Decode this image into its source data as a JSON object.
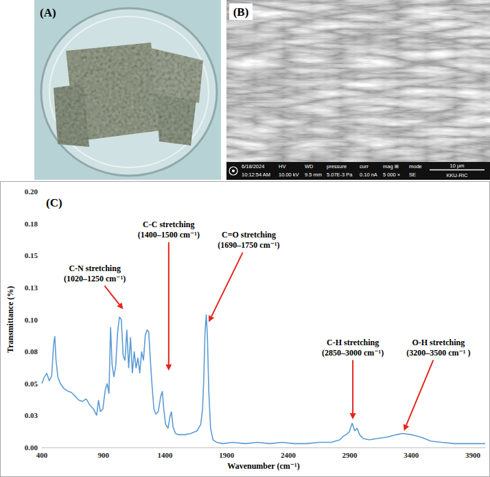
{
  "panels": {
    "A": {
      "label": "(A)"
    },
    "B": {
      "label": "(B)",
      "sem_info": [
        {
          "head": "6/18/2024",
          "value": "10:12:54 AM"
        },
        {
          "head": "HV",
          "value": "10.00 kV"
        },
        {
          "head": "WD",
          "value": "9.5 mm"
        },
        {
          "head": "pressure",
          "value": "5.07E-3 Pa"
        },
        {
          "head": "curr",
          "value": "0.10 nA"
        },
        {
          "head": "mag ⊞",
          "value": "5 000 ×"
        },
        {
          "head": "mode",
          "value": "SE"
        }
      ],
      "scale_bar": "10 µm",
      "lab": "KKU-RIC"
    }
  },
  "chart_data": {
    "type": "line",
    "panel_label": "(C)",
    "x_label": "Wavenumber (cm⁻¹)",
    "y_label": "Transmittance (%)",
    "color": "#5b9bd5",
    "grid": false,
    "xlim": [
      400,
      4000
    ],
    "xticks": [
      400,
      900,
      1400,
      1900,
      2400,
      2900,
      3400,
      3900
    ],
    "ylim": [
      0,
      0.2
    ],
    "yticks": [
      {
        "value": 0,
        "label": "0.00"
      },
      {
        "value": 0.025,
        "label": "0.03"
      },
      0.05,
      {
        "value": 0.075,
        "label": "0.08"
      },
      {
        "value": 0.1,
        "label": "0.10"
      },
      {
        "value": 0.125,
        "label": "0.13"
      },
      0.15,
      {
        "value": 0.175,
        "label": "0.18"
      },
      {
        "value": 0.2,
        "label": "0.20"
      }
    ],
    "x": [
      400,
      420,
      440,
      460,
      480,
      495,
      505,
      515,
      530,
      550,
      580,
      610,
      640,
      670,
      700,
      730,
      760,
      790,
      820,
      845,
      860,
      875,
      895,
      915,
      930,
      945,
      958,
      970,
      985,
      1000,
      1015,
      1030,
      1045,
      1060,
      1075,
      1090,
      1105,
      1120,
      1135,
      1150,
      1165,
      1180,
      1195,
      1210,
      1225,
      1240,
      1255,
      1268,
      1280,
      1295,
      1310,
      1325,
      1345,
      1365,
      1378,
      1390,
      1405,
      1425,
      1440,
      1452,
      1465,
      1485,
      1510,
      1560,
      1610,
      1660,
      1690,
      1705,
      1715,
      1725,
      1735,
      1745,
      1755,
      1770,
      1790,
      1820,
      1870,
      1950,
      2050,
      2150,
      2250,
      2350,
      2450,
      2550,
      2650,
      2750,
      2820,
      2850,
      2870,
      2895,
      2920,
      2940,
      2960,
      2980,
      3010,
      3060,
      3120,
      3200,
      3280,
      3330,
      3400,
      3480,
      3560,
      3650,
      3750,
      3850,
      3950,
      4000
    ],
    "values": [
      0.05,
      0.055,
      0.058,
      0.052,
      0.056,
      0.08,
      0.087,
      0.068,
      0.055,
      0.05,
      0.046,
      0.044,
      0.043,
      0.04,
      0.037,
      0.036,
      0.038,
      0.033,
      0.03,
      0.025,
      0.037,
      0.028,
      0.03,
      0.045,
      0.05,
      0.042,
      0.094,
      0.065,
      0.055,
      0.064,
      0.09,
      0.102,
      0.1,
      0.072,
      0.068,
      0.092,
      0.062,
      0.086,
      0.058,
      0.075,
      0.062,
      0.07,
      0.058,
      0.075,
      0.068,
      0.088,
      0.092,
      0.09,
      0.07,
      0.048,
      0.03,
      0.026,
      0.028,
      0.04,
      0.044,
      0.03,
      0.018,
      0.015,
      0.024,
      0.028,
      0.016,
      0.011,
      0.01,
      0.01,
      0.011,
      0.013,
      0.018,
      0.03,
      0.055,
      0.09,
      0.104,
      0.085,
      0.045,
      0.015,
      0.006,
      0.004,
      0.003,
      0.004,
      0.003,
      0.004,
      0.003,
      0.004,
      0.003,
      0.003,
      0.004,
      0.004,
      0.006,
      0.009,
      0.01,
      0.012,
      0.019,
      0.013,
      0.015,
      0.01,
      0.007,
      0.006,
      0.007,
      0.008,
      0.01,
      0.011,
      0.01,
      0.008,
      0.005,
      0.004,
      0.003,
      0.003,
      0.003,
      0.003
    ],
    "annotations": [
      {
        "lines": [
          "C-N stretching",
          "(1020–1250 cm⁻¹)"
        ],
        "x": 1060,
        "y": 0.108,
        "text_x": 830,
        "text_y": 0.136
      },
      {
        "lines": [
          "C-C stretching",
          "(1400–1500 cm⁻¹)"
        ],
        "x": 1430,
        "y": 0.06,
        "text_x": 1430,
        "text_y": 0.17
      },
      {
        "lines": [
          "C=O stretching",
          "(1690–1750 cm⁻¹)"
        ],
        "x": 1755,
        "y": 0.098,
        "text_x": 2080,
        "text_y": 0.162
      },
      {
        "lines": [
          "C-H stretching",
          "(2850–3000 cm⁻¹)"
        ],
        "x": 2925,
        "y": 0.022,
        "text_x": 2925,
        "text_y": 0.078
      },
      {
        "lines": [
          "O-H stretching",
          "(3200–3500 cm⁻¹ )"
        ],
        "x": 3340,
        "y": 0.013,
        "text_x": 3620,
        "text_y": 0.078
      }
    ]
  }
}
